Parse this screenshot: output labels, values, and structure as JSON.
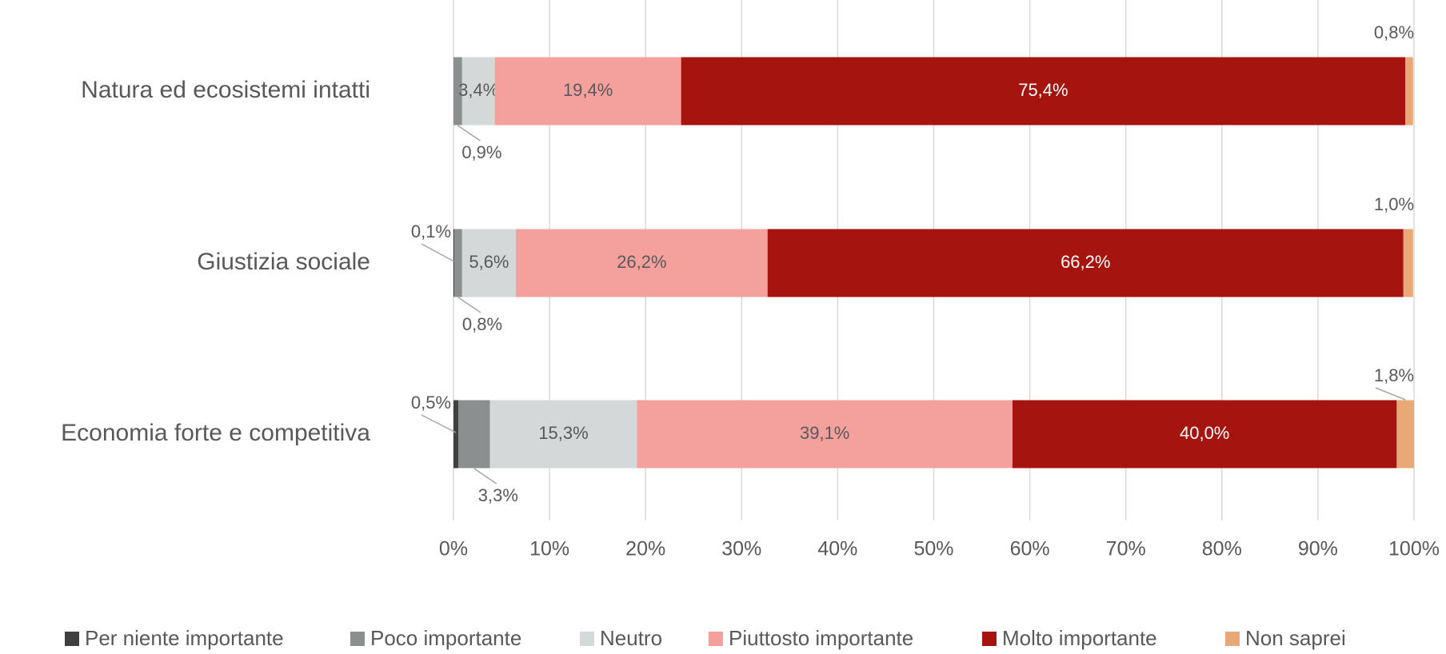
{
  "chart_data": {
    "type": "stacked_barh",
    "categories": [
      "Natura ed ecosistemi intatti",
      "Giustizia sociale",
      "Economia forte e competitiva"
    ],
    "series": [
      {
        "name": "Per niente importante",
        "color": "#404040",
        "values": [
          0,
          0.1,
          0.5
        ],
        "value_labels": [
          null,
          "0,1%",
          "0,5%"
        ]
      },
      {
        "name": "Poco importante",
        "color": "#8c8f90",
        "values": [
          0.9,
          0.8,
          3.3
        ],
        "value_labels": [
          "0,9%",
          "0,8%",
          "3,3%"
        ]
      },
      {
        "name": "Neutro",
        "color": "#d5d8d8",
        "values": [
          3.4,
          5.6,
          15.3
        ],
        "value_labels": [
          "3,4%",
          "5,6%",
          "15,3%"
        ]
      },
      {
        "name": "Piuttosto importante",
        "color": "#f4a09c",
        "values": [
          19.4,
          26.2,
          39.1
        ],
        "value_labels": [
          "19,4%",
          "26,2%",
          "39,1%"
        ]
      },
      {
        "name": "Molto importante",
        "color": "#a5140f",
        "values": [
          75.4,
          66.2,
          40.0
        ],
        "value_labels": [
          "75,4%",
          "66,2%",
          "40,0%"
        ]
      },
      {
        "name": "Non saprei",
        "color": "#e8a878",
        "values": [
          0.8,
          1.0,
          1.8
        ],
        "value_labels": [
          "0,8%",
          "1,0%",
          "1,8%"
        ]
      }
    ],
    "xlim": [
      0,
      100
    ],
    "xticks": [
      {
        "value": 0,
        "label": "0%"
      },
      {
        "value": 10,
        "label": "10%"
      },
      {
        "value": 20,
        "label": "20%"
      },
      {
        "value": 30,
        "label": "30%"
      },
      {
        "value": 40,
        "label": "40%"
      },
      {
        "value": 50,
        "label": "50%"
      },
      {
        "value": 60,
        "label": "60%"
      },
      {
        "value": 70,
        "label": "70%"
      },
      {
        "value": 80,
        "label": "80%"
      },
      {
        "value": 90,
        "label": "90%"
      },
      {
        "value": 100,
        "label": "100%"
      }
    ],
    "grid": true,
    "legend": "bottom"
  }
}
